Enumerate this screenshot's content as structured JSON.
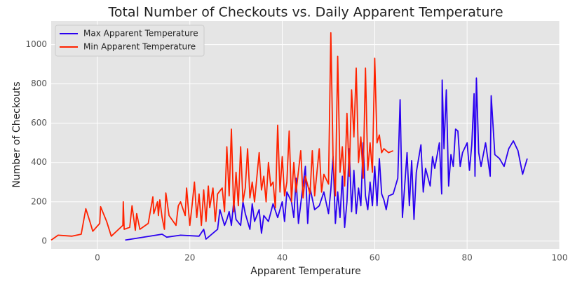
{
  "chart_data": {
    "type": "line",
    "title": "Total Number of Checkouts vs. Daily Apparent Temperature",
    "xlabel": "Apparent Temperature",
    "ylabel": "Number of Checkouts",
    "xlim": [
      -10,
      100
    ],
    "xticks": [
      0,
      20,
      40,
      60,
      80,
      100
    ],
    "ylim": [
      -40,
      1120
    ],
    "yticks": [
      0,
      200,
      400,
      600,
      800,
      1000
    ],
    "grid": true,
    "legend": "upper left",
    "series": [
      {
        "name": "Max Apparent Temperature",
        "color": "#2a00f0",
        "x": [
          6,
          14,
          15,
          18,
          22,
          23,
          23.5,
          25,
          26,
          26.5,
          27.5,
          28,
          28.5,
          29,
          29.5,
          30,
          31,
          31.5,
          32,
          33,
          33.5,
          34,
          35,
          35.5,
          36,
          37,
          38,
          39,
          40,
          40.5,
          41,
          42,
          42.5,
          43,
          43.5,
          44,
          45,
          45.5,
          46,
          47,
          48,
          49,
          50,
          50.5,
          51,
          51.5,
          52,
          52.5,
          53,
          53.5,
          54,
          54.5,
          55,
          55.5,
          56,
          56.5,
          57,
          57.5,
          58,
          58.5,
          59,
          59.5,
          60,
          60.5,
          61,
          61.5,
          62,
          62.5,
          63,
          64,
          65,
          65.5,
          66,
          67,
          67.5,
          68,
          68.5,
          69,
          70,
          70.5,
          71,
          72,
          72.5,
          73,
          74,
          74.5,
          74.6,
          75,
          75.5,
          76,
          76.5,
          77,
          77.5,
          78,
          78.5,
          79,
          80,
          80.5,
          81,
          81.5,
          81.7,
          82,
          82.5,
          83,
          84,
          85,
          85.2,
          86,
          87,
          88,
          89,
          90,
          91,
          92,
          93
        ],
        "values": [
          5,
          35,
          20,
          30,
          25,
          60,
          10,
          40,
          60,
          160,
          80,
          110,
          150,
          80,
          200,
          110,
          80,
          200,
          140,
          60,
          190,
          100,
          160,
          40,
          130,
          100,
          190,
          120,
          200,
          100,
          250,
          200,
          120,
          320,
          90,
          190,
          380,
          90,
          270,
          160,
          180,
          250,
          140,
          260,
          430,
          90,
          250,
          120,
          330,
          70,
          200,
          470,
          150,
          360,
          140,
          270,
          180,
          500,
          230,
          160,
          300,
          180,
          380,
          180,
          420,
          240,
          210,
          160,
          230,
          240,
          320,
          720,
          120,
          450,
          180,
          410,
          110,
          350,
          490,
          250,
          370,
          280,
          430,
          370,
          500,
          240,
          820,
          470,
          770,
          280,
          440,
          380,
          570,
          560,
          380,
          450,
          500,
          360,
          490,
          750,
          330,
          830,
          450,
          380,
          500,
          330,
          740,
          440,
          420,
          380,
          470,
          510,
          460,
          340,
          420
        ]
      },
      {
        "name": "Min Apparent Temperature",
        "color": "#ff2200",
        "x": [
          -10,
          -8.5,
          -5.5,
          -3.5,
          -2.5,
          -1.5,
          -1,
          0.5,
          0.7,
          2,
          3,
          5.5,
          5.6,
          5.8,
          7,
          7.5,
          8.2,
          8.5,
          9.2,
          11,
          12,
          12.2,
          13,
          13.2,
          13.5,
          14,
          14.5,
          14.8,
          15.5,
          17,
          17.5,
          18,
          19,
          19.3,
          20,
          20.5,
          21,
          21.5,
          22,
          22.5,
          23,
          23.5,
          24,
          24.3,
          25,
          25.5,
          26,
          27,
          27.5,
          28,
          28.5,
          29,
          29.5,
          30,
          30.5,
          31,
          31.5,
          32,
          32.5,
          33,
          33.5,
          34,
          35,
          35.5,
          36,
          36.5,
          37,
          37.5,
          38,
          38.5,
          39,
          39.5,
          40,
          40.5,
          41,
          41.5,
          42,
          42.5,
          43,
          44,
          44.5,
          45,
          46,
          46.5,
          47,
          48,
          48.5,
          49,
          50,
          50.5,
          51,
          51.5,
          52,
          52.5,
          53,
          53.5,
          54,
          54.5,
          55,
          55.5,
          56,
          56.5,
          57,
          57.5,
          58,
          58.5,
          59,
          59.5,
          60,
          60.5,
          61,
          61.5,
          62,
          63,
          64
        ],
        "values": [
          5,
          30,
          25,
          35,
          165,
          90,
          50,
          90,
          175,
          100,
          25,
          80,
          200,
          60,
          70,
          180,
          55,
          140,
          60,
          90,
          225,
          140,
          200,
          130,
          210,
          120,
          60,
          245,
          130,
          80,
          180,
          200,
          130,
          270,
          80,
          185,
          300,
          120,
          240,
          80,
          260,
          100,
          280,
          170,
          270,
          100,
          240,
          270,
          150,
          480,
          230,
          570,
          150,
          350,
          180,
          480,
          200,
          270,
          470,
          220,
          300,
          200,
          450,
          260,
          330,
          200,
          400,
          280,
          300,
          170,
          590,
          250,
          430,
          230,
          300,
          560,
          200,
          400,
          250,
          460,
          220,
          330,
          240,
          460,
          230,
          470,
          250,
          340,
          290,
          1060,
          420,
          230,
          940,
          350,
          480,
          280,
          650,
          330,
          770,
          530,
          880,
          400,
          530,
          320,
          880,
          360,
          500,
          350,
          930,
          500,
          540,
          450,
          470,
          450,
          460
        ]
      }
    ]
  }
}
